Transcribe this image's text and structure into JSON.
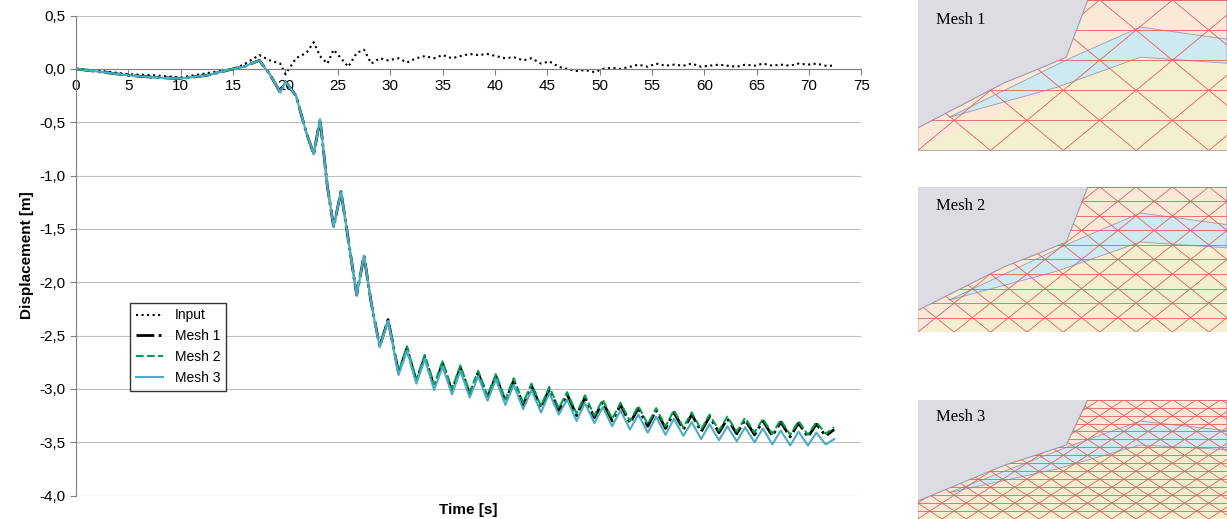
{
  "chart_data": {
    "type": "line",
    "x_label": "Time [s]",
    "y_label": "Displacement [m]",
    "x": [
      0,
      2.5,
      5,
      7.5,
      10,
      12.5,
      15,
      16,
      17,
      17.5,
      18.5,
      19.5,
      20,
      21,
      22,
      22.7,
      23.3,
      24,
      24.6,
      25.3,
      26,
      26.8,
      27.5,
      28.2,
      29,
      29.8,
      30.8,
      31.6,
      32.5,
      33.3,
      34.2,
      35,
      35.9,
      36.7,
      37.6,
      38.4,
      39.3,
      40.1,
      41,
      41.8,
      42.7,
      43.5,
      44.4,
      45.2,
      46.1,
      46.9,
      47.8,
      48.6,
      49.5,
      50.3,
      51.2,
      52,
      52.9,
      53.7,
      54.6,
      55.4,
      56.3,
      57.1,
      58,
      58.8,
      59.7,
      60.5,
      61.4,
      62.2,
      63.1,
      63.9,
      64.8,
      65.6,
      66.5,
      67.3,
      68.2,
      69,
      69.9,
      70.7,
      71.6,
      72.4
    ],
    "series": [
      {
        "name": "Input",
        "color": "#000000",
        "line_style": "dotted",
        "values": [
          0,
          -0.02,
          -0.05,
          -0.06,
          -0.08,
          -0.04,
          0.0,
          0.04,
          0.1,
          0.13,
          0.08,
          0.05,
          -0.05,
          0.1,
          0.15,
          0.25,
          0.12,
          0.05,
          0.18,
          0.1,
          0.02,
          0.15,
          0.18,
          0.05,
          0.1,
          0.08,
          0.1,
          0.06,
          0.1,
          0.12,
          0.1,
          0.13,
          0.1,
          0.12,
          0.14,
          0.13,
          0.14,
          0.12,
          0.1,
          0.11,
          0.08,
          0.1,
          0.05,
          0.07,
          0.02,
          0.0,
          -0.02,
          -0.01,
          -0.03,
          0.0,
          0.01,
          0.0,
          0.02,
          0.04,
          0.02,
          0.05,
          0.03,
          0.04,
          0.03,
          0.05,
          0.02,
          0.03,
          0.04,
          0.03,
          0.02,
          0.04,
          0.03,
          0.05,
          0.03,
          0.04,
          0.03,
          0.05,
          0.04,
          0.05,
          0.03,
          0.03
        ]
      },
      {
        "name": "Mesh 1",
        "color": "#000000",
        "line_style": "dashdot",
        "values": [
          0,
          -0.03,
          -0.06,
          -0.08,
          -0.09,
          -0.06,
          0.0,
          0.02,
          0.06,
          0.08,
          -0.05,
          -0.22,
          -0.12,
          -0.25,
          -0.6,
          -0.8,
          -0.47,
          -1.1,
          -1.48,
          -1.15,
          -1.6,
          -2.12,
          -1.75,
          -2.2,
          -2.6,
          -2.35,
          -2.85,
          -2.62,
          -2.93,
          -2.7,
          -2.98,
          -2.76,
          -3.02,
          -2.8,
          -3.05,
          -2.85,
          -3.08,
          -2.88,
          -3.12,
          -2.92,
          -3.15,
          -2.97,
          -3.18,
          -3.0,
          -3.2,
          -3.05,
          -3.25,
          -3.08,
          -3.27,
          -3.12,
          -3.3,
          -3.15,
          -3.32,
          -3.18,
          -3.35,
          -3.2,
          -3.37,
          -3.22,
          -3.38,
          -3.24,
          -3.4,
          -3.26,
          -3.41,
          -3.28,
          -3.42,
          -3.29,
          -3.43,
          -3.3,
          -3.44,
          -3.31,
          -3.45,
          -3.32,
          -3.45,
          -3.33,
          -3.44,
          -3.38
        ]
      },
      {
        "name": "Mesh 2",
        "color": "#00a050",
        "line_style": "dashed",
        "values": [
          0,
          -0.03,
          -0.06,
          -0.08,
          -0.09,
          -0.06,
          0.0,
          0.02,
          0.06,
          0.08,
          -0.05,
          -0.22,
          -0.12,
          -0.25,
          -0.6,
          -0.8,
          -0.47,
          -1.1,
          -1.48,
          -1.15,
          -1.6,
          -2.12,
          -1.75,
          -2.2,
          -2.6,
          -2.35,
          -2.84,
          -2.6,
          -2.91,
          -2.68,
          -2.96,
          -2.74,
          -3.0,
          -2.78,
          -3.03,
          -2.83,
          -3.06,
          -2.86,
          -3.1,
          -2.9,
          -3.13,
          -2.95,
          -3.16,
          -2.98,
          -3.18,
          -3.03,
          -3.23,
          -3.06,
          -3.25,
          -3.1,
          -3.28,
          -3.13,
          -3.3,
          -3.16,
          -3.33,
          -3.18,
          -3.35,
          -3.2,
          -3.36,
          -3.22,
          -3.38,
          -3.24,
          -3.39,
          -3.26,
          -3.4,
          -3.27,
          -3.41,
          -3.28,
          -3.42,
          -3.29,
          -3.43,
          -3.3,
          -3.43,
          -3.31,
          -3.42,
          -3.36
        ]
      },
      {
        "name": "Mesh 3",
        "color": "#4bacc6",
        "line_style": "solid",
        "values": [
          0,
          -0.03,
          -0.06,
          -0.08,
          -0.09,
          -0.06,
          0.0,
          0.02,
          0.06,
          0.08,
          -0.05,
          -0.22,
          -0.12,
          -0.25,
          -0.6,
          -0.8,
          -0.47,
          -1.1,
          -1.48,
          -1.15,
          -1.6,
          -2.12,
          -1.75,
          -2.2,
          -2.61,
          -2.36,
          -2.87,
          -2.64,
          -2.95,
          -2.72,
          -3.01,
          -2.79,
          -3.05,
          -2.83,
          -3.08,
          -2.88,
          -3.11,
          -2.91,
          -3.15,
          -2.96,
          -3.19,
          -3.01,
          -3.22,
          -3.04,
          -3.24,
          -3.1,
          -3.3,
          -3.13,
          -3.32,
          -3.17,
          -3.35,
          -3.2,
          -3.38,
          -3.24,
          -3.41,
          -3.26,
          -3.43,
          -3.28,
          -3.44,
          -3.31,
          -3.47,
          -3.33,
          -3.48,
          -3.35,
          -3.49,
          -3.36,
          -3.5,
          -3.37,
          -3.52,
          -3.39,
          -3.53,
          -3.4,
          -3.53,
          -3.41,
          -3.52,
          -3.47
        ]
      }
    ],
    "xlim": [
      0,
      75
    ],
    "xticks": [
      0,
      5,
      10,
      15,
      20,
      25,
      30,
      35,
      40,
      45,
      50,
      55,
      60,
      65,
      70,
      75
    ],
    "ylim": [
      -4.0,
      0.5
    ],
    "yticks": [
      {
        "value": -4.0,
        "label": "-4,0"
      },
      {
        "value": -3.5,
        "label": "-3,5"
      },
      {
        "value": -3.0,
        "label": "-3,0"
      },
      {
        "value": -2.5,
        "label": "-2,5"
      },
      {
        "value": -2.0,
        "label": "-2,0"
      },
      {
        "value": -1.5,
        "label": "-1,5"
      },
      {
        "value": -1.0,
        "label": "-1,0"
      },
      {
        "value": -0.5,
        "label": "-0,5"
      },
      {
        "value": 0.0,
        "label": "0,0"
      },
      {
        "value": 0.5,
        "label": "0,5"
      }
    ],
    "grid": true,
    "legend": "center left"
  },
  "mesh_panels": [
    "Mesh 1",
    "Mesh 2",
    "Mesh 3"
  ]
}
